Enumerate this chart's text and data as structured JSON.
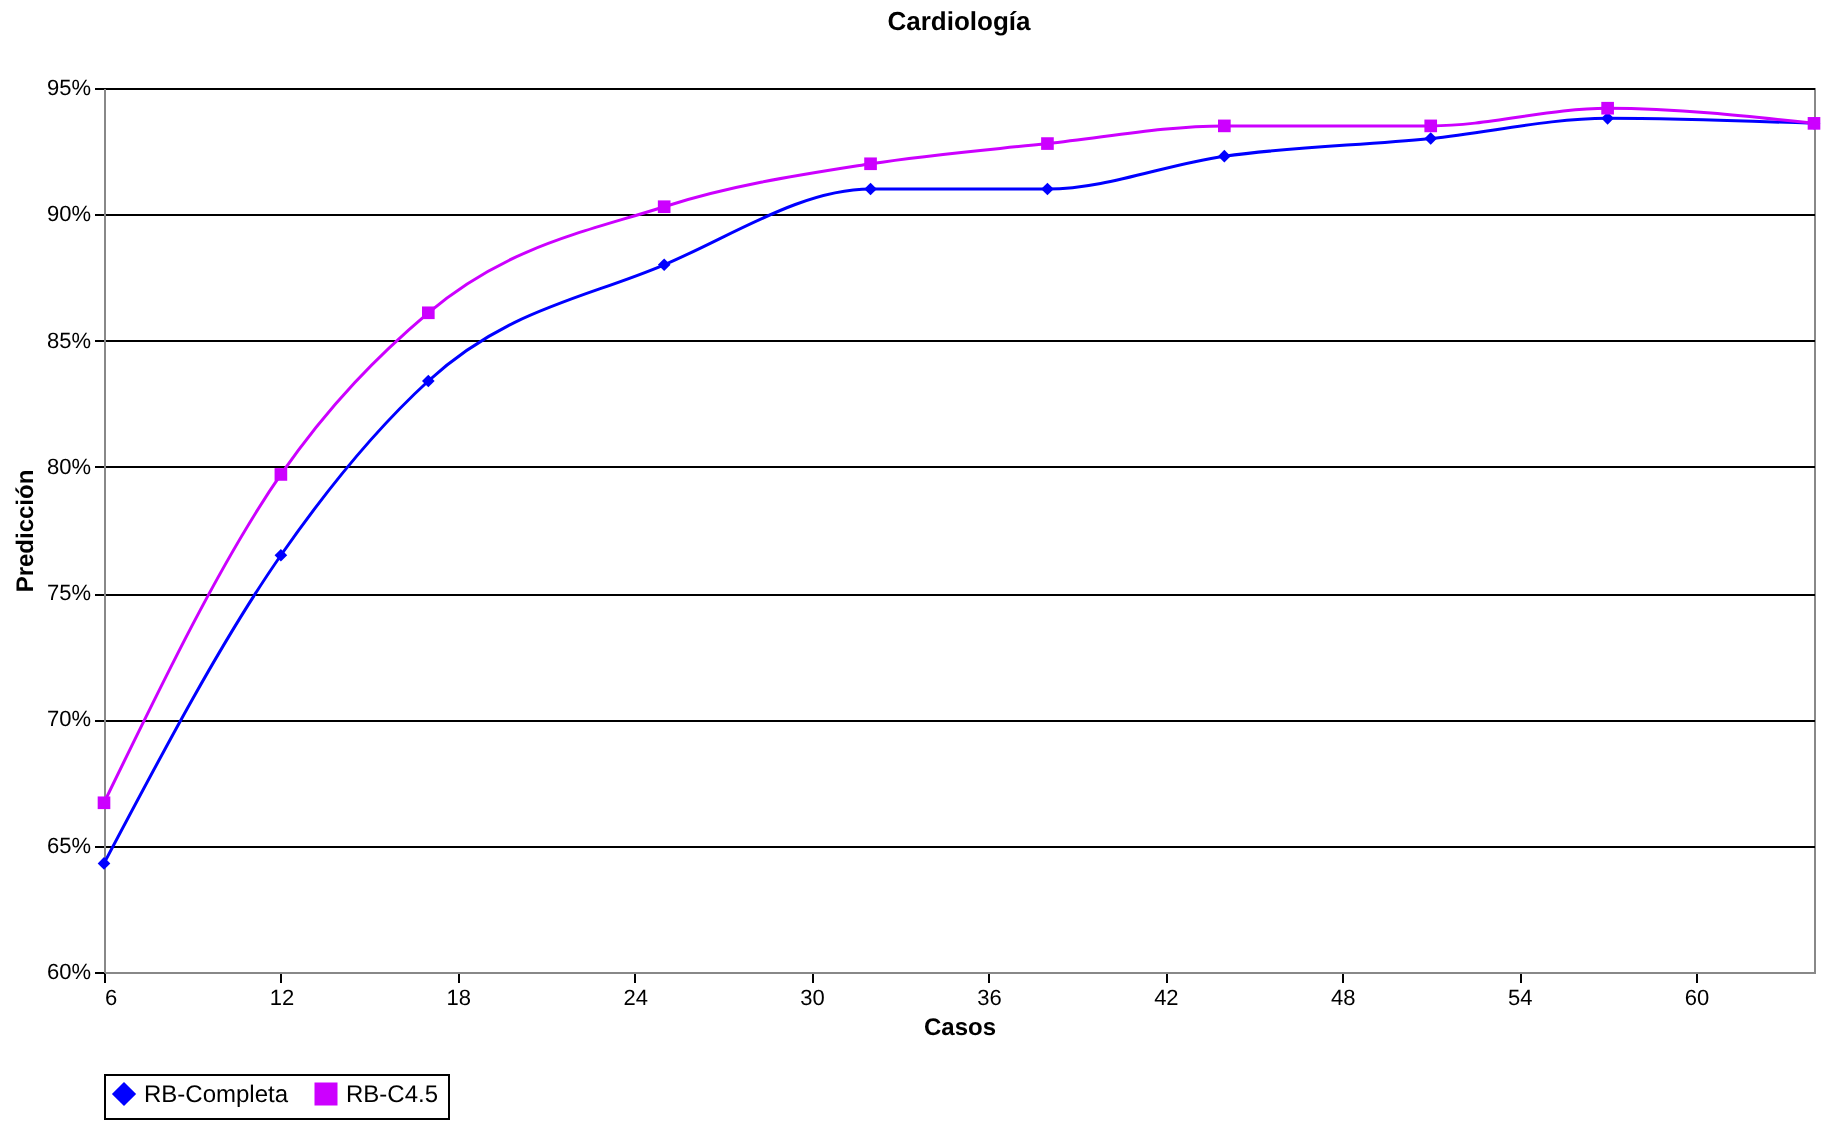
{
  "chart_data": {
    "type": "line",
    "title": "Cardiología",
    "xlabel": "Casos",
    "ylabel": "Predicción",
    "x": [
      6,
      12,
      17,
      25,
      32,
      38,
      44,
      51,
      57,
      64
    ],
    "series": [
      {
        "name": "RB-Completa",
        "color": "#0000ff",
        "marker": "diamond",
        "values": [
          64.3,
          76.5,
          83.4,
          88.0,
          91.0,
          91.0,
          92.3,
          93.0,
          93.8,
          93.6
        ]
      },
      {
        "name": "RB-C4.5",
        "color": "#cc00ff",
        "marker": "square",
        "values": [
          66.7,
          79.7,
          86.1,
          90.3,
          92.0,
          92.8,
          93.5,
          93.5,
          94.2,
          93.6
        ]
      }
    ],
    "xlim": [
      6,
      64
    ],
    "xticks": [
      6,
      12,
      18,
      24,
      30,
      36,
      42,
      48,
      54,
      60
    ],
    "ylim": [
      60,
      95
    ],
    "yticks": [
      {
        "value": 60,
        "label": "60%"
      },
      {
        "value": 65,
        "label": "65%"
      },
      {
        "value": 70,
        "label": "70%"
      },
      {
        "value": 75,
        "label": "75%"
      },
      {
        "value": 80,
        "label": "80%"
      },
      {
        "value": 85,
        "label": "85%"
      },
      {
        "value": 90,
        "label": "90%"
      },
      {
        "value": 95,
        "label": "95%"
      }
    ],
    "grid": "y",
    "legend": "bottom",
    "line_style": "solid"
  }
}
